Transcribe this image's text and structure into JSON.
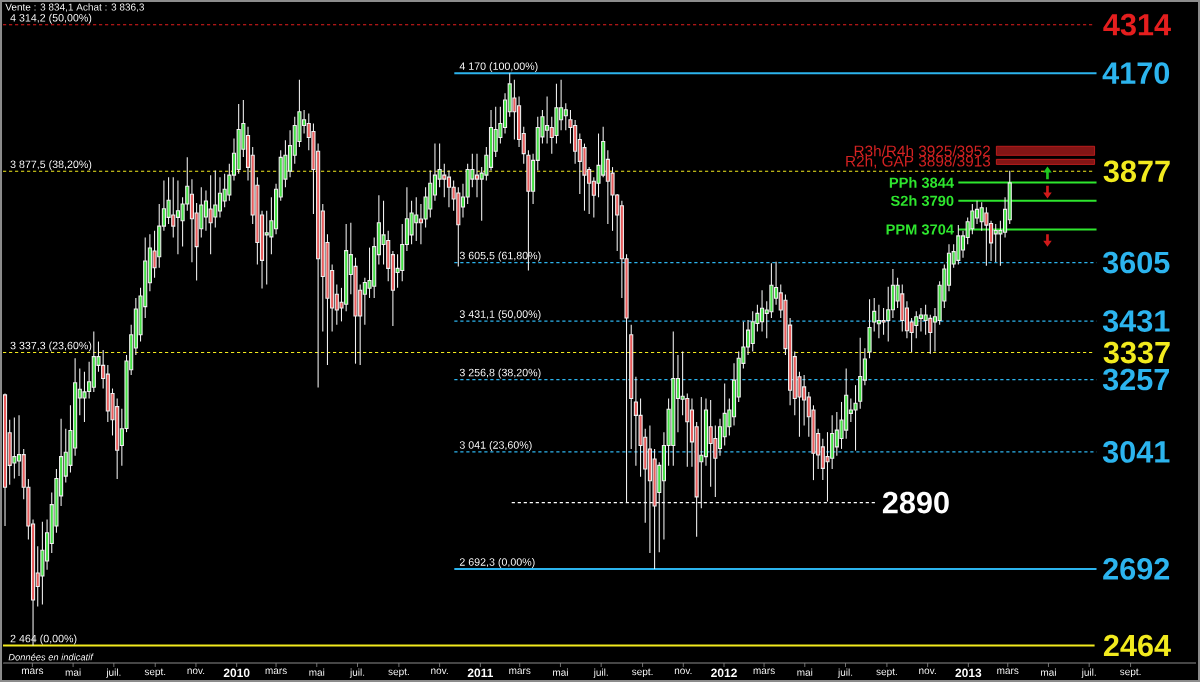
{
  "chart_data": {
    "type": "candlestick",
    "title": "Vente : 3 834,1 Achat : 3 836,3",
    "x": [
      "2009-01-19",
      "2009-01-26",
      "2009-02-02",
      "2009-02-09",
      "2009-02-16",
      "2009-02-23",
      "2009-03-02",
      "2009-03-09",
      "2009-03-16",
      "2009-03-23",
      "2009-03-30",
      "2009-04-06",
      "2009-04-13",
      "2009-04-20",
      "2009-04-27",
      "2009-05-04",
      "2009-05-11",
      "2009-05-18",
      "2009-05-25",
      "2009-06-01",
      "2009-06-08",
      "2009-06-15",
      "2009-06-22",
      "2009-06-29",
      "2009-07-06",
      "2009-07-13",
      "2009-07-20",
      "2009-07-27",
      "2009-08-03",
      "2009-08-10",
      "2009-08-17",
      "2009-08-24",
      "2009-08-31",
      "2009-09-07",
      "2009-09-14",
      "2009-09-21",
      "2009-09-28",
      "2009-10-05",
      "2009-10-12",
      "2009-10-19",
      "2009-10-26",
      "2009-11-02",
      "2009-11-09",
      "2009-11-16",
      "2009-11-23",
      "2009-11-30",
      "2009-12-07",
      "2009-12-14",
      "2009-12-21",
      "2009-12-28",
      "2010-01-04",
      "2010-01-11",
      "2010-01-18",
      "2010-01-25",
      "2010-02-01",
      "2010-02-08",
      "2010-02-15",
      "2010-02-22",
      "2010-03-01",
      "2010-03-08",
      "2010-03-15",
      "2010-03-22",
      "2010-03-29",
      "2010-04-05",
      "2010-04-12",
      "2010-04-19",
      "2010-04-26",
      "2010-05-03",
      "2010-05-10",
      "2010-05-17",
      "2010-05-24",
      "2010-05-31",
      "2010-06-07",
      "2010-06-14",
      "2010-06-21",
      "2010-06-28",
      "2010-07-05",
      "2010-07-12",
      "2010-07-19",
      "2010-07-26",
      "2010-08-02",
      "2010-08-09",
      "2010-08-16",
      "2010-08-23",
      "2010-08-30",
      "2010-09-06",
      "2010-09-13",
      "2010-09-20",
      "2010-09-27",
      "2010-10-04",
      "2010-10-11",
      "2010-10-18",
      "2010-10-25",
      "2010-11-01",
      "2010-11-08",
      "2010-11-15",
      "2010-11-22",
      "2010-11-29",
      "2010-12-06",
      "2010-12-13",
      "2010-12-20",
      "2010-12-27",
      "2011-01-03",
      "2011-01-10",
      "2011-01-17",
      "2011-01-24",
      "2011-01-31",
      "2011-02-07",
      "2011-02-14",
      "2011-02-21",
      "2011-02-28",
      "2011-03-07",
      "2011-03-14",
      "2011-03-21",
      "2011-03-28",
      "2011-04-04",
      "2011-04-11",
      "2011-04-18",
      "2011-04-25",
      "2011-05-02",
      "2011-05-09",
      "2011-05-16",
      "2011-05-23",
      "2011-05-30",
      "2011-06-06",
      "2011-06-13",
      "2011-06-20",
      "2011-06-27",
      "2011-07-04",
      "2011-07-11",
      "2011-07-18",
      "2011-07-25",
      "2011-08-01",
      "2011-08-08",
      "2011-08-15",
      "2011-08-22",
      "2011-08-29",
      "2011-09-05",
      "2011-09-12",
      "2011-09-19",
      "2011-09-26",
      "2011-10-03",
      "2011-10-10",
      "2011-10-17",
      "2011-10-24",
      "2011-10-31",
      "2011-11-07",
      "2011-11-14",
      "2011-11-21",
      "2011-11-28",
      "2011-12-05",
      "2011-12-12",
      "2011-12-19",
      "2011-12-26",
      "2012-01-02",
      "2012-01-09",
      "2012-01-16",
      "2012-01-23",
      "2012-01-30",
      "2012-02-06",
      "2012-02-13",
      "2012-02-20",
      "2012-02-27",
      "2012-03-05",
      "2012-03-12",
      "2012-03-19",
      "2012-03-26",
      "2012-04-02",
      "2012-04-09",
      "2012-04-16",
      "2012-04-23",
      "2012-04-30",
      "2012-05-07",
      "2012-05-14",
      "2012-05-21",
      "2012-05-28",
      "2012-06-04",
      "2012-06-11",
      "2012-06-18",
      "2012-06-25",
      "2012-07-02",
      "2012-07-09",
      "2012-07-16",
      "2012-07-23",
      "2012-07-30",
      "2012-08-06",
      "2012-08-13",
      "2012-08-20",
      "2012-08-27",
      "2012-09-03",
      "2012-09-10",
      "2012-09-17",
      "2012-09-24",
      "2012-10-01",
      "2012-10-08",
      "2012-10-15",
      "2012-10-22",
      "2012-10-29",
      "2012-11-05",
      "2012-11-12",
      "2012-11-19",
      "2012-11-26",
      "2012-12-03",
      "2012-12-10",
      "2012-12-17",
      "2012-12-24",
      "2012-12-31",
      "2013-01-07",
      "2013-01-14",
      "2013-01-21",
      "2013-01-28",
      "2013-02-04",
      "2013-02-11",
      "2013-02-18",
      "2013-02-25",
      "2013-03-04"
    ],
    "ohlc": [
      [
        3211,
        3215,
        2820,
        2936
      ],
      [
        3098,
        3137,
        2943,
        3001
      ],
      [
        3008,
        3144,
        2962,
        3027
      ],
      [
        3014,
        3150,
        2969,
        3033
      ],
      [
        3033,
        3050,
        2900,
        2936
      ],
      [
        2936,
        2960,
        2780,
        2820
      ],
      [
        2826,
        2840,
        2464,
        2600
      ],
      [
        2680,
        2760,
        2580,
        2640
      ],
      [
        2671,
        2833,
        2586,
        2748
      ],
      [
        2716,
        2840,
        2690,
        2800
      ],
      [
        2768,
        2920,
        2740,
        2884
      ],
      [
        2820,
        2990,
        2800,
        2962
      ],
      [
        2910,
        3140,
        2880,
        3027
      ],
      [
        2969,
        3110,
        2950,
        3040
      ],
      [
        3001,
        3180,
        2980,
        3105
      ],
      [
        3053,
        3320,
        3030,
        3247
      ],
      [
        3202,
        3290,
        3150,
        3228
      ],
      [
        3202,
        3280,
        3130,
        3220
      ],
      [
        3221,
        3310,
        3200,
        3250
      ],
      [
        3234,
        3400,
        3220,
        3325
      ],
      [
        3299,
        3370,
        3280,
        3325
      ],
      [
        3299,
        3345,
        3230,
        3260
      ],
      [
        3273,
        3300,
        3130,
        3163
      ],
      [
        3215,
        3230,
        3090,
        3137
      ],
      [
        3176,
        3200,
        2960,
        3046
      ],
      [
        3060,
        3170,
        3000,
        3110
      ],
      [
        3111,
        3330,
        3100,
        3312
      ],
      [
        3286,
        3420,
        3270,
        3390
      ],
      [
        3351,
        3500,
        3330,
        3467
      ],
      [
        3390,
        3530,
        3370,
        3506
      ],
      [
        3474,
        3680,
        3440,
        3610
      ],
      [
        3545,
        3690,
        3520,
        3649
      ],
      [
        3640,
        3700,
        3560,
        3590
      ],
      [
        3623,
        3780,
        3590,
        3714
      ],
      [
        3714,
        3850,
        3700,
        3766
      ],
      [
        3740,
        3860,
        3720,
        3791
      ],
      [
        3747,
        3860,
        3680,
        3714
      ],
      [
        3740,
        3850,
        3630,
        3760
      ],
      [
        3730,
        3800,
        3653,
        3780
      ],
      [
        3780,
        3919,
        3760,
        3833
      ],
      [
        3809,
        3854,
        3606,
        3736
      ],
      [
        3753,
        3783,
        3552,
        3653
      ],
      [
        3706,
        3830,
        3680,
        3777
      ],
      [
        3741,
        3820,
        3700,
        3789
      ],
      [
        3765,
        3866,
        3630,
        3724
      ],
      [
        3741,
        3880,
        3710,
        3777
      ],
      [
        3759,
        3860,
        3740,
        3812
      ],
      [
        3789,
        3870,
        3770,
        3824
      ],
      [
        3807,
        3900,
        3790,
        3866
      ],
      [
        3866,
        3975,
        3850,
        3931
      ],
      [
        3883,
        4078,
        3870,
        4002
      ],
      [
        3943,
        4090,
        3920,
        4020
      ],
      [
        3984,
        4010,
        3850,
        3889
      ],
      [
        3925,
        3950,
        3720,
        3747
      ],
      [
        3836,
        3860,
        3600,
        3665
      ],
      [
        3747,
        3760,
        3528,
        3612
      ],
      [
        3688,
        3760,
        3540,
        3694
      ],
      [
        3682,
        3800,
        3630,
        3730
      ],
      [
        3706,
        3840,
        3690,
        3824
      ],
      [
        3801,
        3940,
        3790,
        3919
      ],
      [
        3854,
        3970,
        3830,
        3925
      ],
      [
        3878,
        4000,
        3860,
        3954
      ],
      [
        3925,
        4040,
        3900,
        4014
      ],
      [
        3966,
        4150,
        3950,
        4055
      ],
      [
        4014,
        4060,
        3990,
        4031
      ],
      [
        4020,
        4050,
        3940,
        3978
      ],
      [
        3996,
        4020,
        3750,
        3883
      ],
      [
        3937,
        3960,
        3233,
        3617
      ],
      [
        3759,
        3780,
        3400,
        3564
      ],
      [
        3665,
        3690,
        3300,
        3499
      ],
      [
        3582,
        3600,
        3400,
        3470
      ],
      [
        3511,
        3540,
        3420,
        3464
      ],
      [
        3487,
        3530,
        3430,
        3470
      ],
      [
        3481,
        3720,
        3460,
        3641
      ],
      [
        3570,
        3724,
        3511,
        3629
      ],
      [
        3594,
        3620,
        3304,
        3446
      ],
      [
        3523,
        3540,
        3300,
        3446
      ],
      [
        3511,
        3560,
        3420,
        3546
      ],
      [
        3529,
        3650,
        3500,
        3552
      ],
      [
        3535,
        3680,
        3500,
        3653
      ],
      [
        3629,
        3806,
        3600,
        3724
      ],
      [
        3659,
        3790,
        3600,
        3688
      ],
      [
        3671,
        3700,
        3550,
        3588
      ],
      [
        3629,
        3640,
        3416,
        3523
      ],
      [
        3576,
        3630,
        3530,
        3588
      ],
      [
        3582,
        3720,
        3550,
        3659
      ],
      [
        3659,
        3830,
        3640,
        3736
      ],
      [
        3688,
        3790,
        3660,
        3753
      ],
      [
        3724,
        3800,
        3670,
        3747
      ],
      [
        3735,
        3780,
        3660,
        3724
      ],
      [
        3735,
        3830,
        3710,
        3801
      ],
      [
        3765,
        3880,
        3740,
        3842
      ],
      [
        3807,
        3960,
        3790,
        3866
      ],
      [
        3854,
        3960,
        3830,
        3883
      ],
      [
        3866,
        3900,
        3800,
        3854
      ],
      [
        3860,
        3880,
        3770,
        3830
      ],
      [
        3830,
        3850,
        3760,
        3795
      ],
      [
        3813,
        3830,
        3594,
        3718
      ],
      [
        3771,
        3840,
        3740,
        3801
      ],
      [
        3801,
        3900,
        3780,
        3883
      ],
      [
        3854,
        3930,
        3830,
        3883
      ],
      [
        3866,
        3930,
        3800,
        3854
      ],
      [
        3854,
        3890,
        3730,
        3872
      ],
      [
        3866,
        3950,
        3850,
        3925
      ],
      [
        3889,
        4060,
        3880,
        4008
      ],
      [
        3937,
        4070,
        3920,
        4002
      ],
      [
        3978,
        4070,
        3960,
        4020
      ],
      [
        4008,
        4110,
        3990,
        4090
      ],
      [
        4055,
        4170,
        4040,
        4138
      ],
      [
        4096,
        4150,
        3972,
        4055
      ],
      [
        4073,
        4100,
        3950,
        3972
      ],
      [
        3990,
        4010,
        3900,
        3930
      ],
      [
        3925,
        3940,
        3582,
        3818
      ],
      [
        3818,
        3930,
        3780,
        3910
      ],
      [
        3910,
        4040,
        3880,
        4008
      ],
      [
        3980,
        4060,
        3960,
        4040
      ],
      [
        4000,
        4100,
        3960,
        4014
      ],
      [
        4008,
        4040,
        3930,
        3978
      ],
      [
        3984,
        4138,
        3960,
        4067
      ],
      [
        4031,
        4150,
        4000,
        4067
      ],
      [
        4043,
        4080,
        4000,
        4061
      ],
      [
        4031,
        4060,
        3960,
        4008
      ],
      [
        4014,
        4030,
        3900,
        3937
      ],
      [
        3972,
        3990,
        3810,
        3907
      ],
      [
        3948,
        3960,
        3760,
        3866
      ],
      [
        3883,
        3890,
        3750,
        3842
      ],
      [
        3848,
        3860,
        3740,
        3806
      ],
      [
        3842,
        3990,
        3800,
        3895
      ],
      [
        3866,
        4010,
        3860,
        3966
      ],
      [
        3913,
        3940,
        3720,
        3848
      ],
      [
        3872,
        3890,
        3700,
        3807
      ],
      [
        3807,
        3810,
        3640,
        3747
      ],
      [
        3775,
        3790,
        3500,
        3617
      ],
      [
        3617,
        3630,
        2890,
        3440
      ],
      [
        3390,
        3420,
        3050,
        3200
      ],
      [
        3190,
        3265,
        3000,
        3150
      ],
      [
        3150,
        3200,
        2967,
        3060
      ],
      [
        3085,
        3110,
        2830,
        2990
      ],
      [
        3050,
        3120,
        2740,
        2955
      ],
      [
        3020,
        3050,
        2692,
        2880
      ],
      [
        2920,
        3010,
        2742,
        3001
      ],
      [
        2955,
        3100,
        2780,
        3060
      ],
      [
        3060,
        3200,
        3000,
        3168
      ],
      [
        3060,
        3400,
        3000,
        3260
      ],
      [
        3200,
        3330,
        3100,
        3260
      ],
      [
        3198,
        3340,
        3150,
        3207
      ],
      [
        3200,
        3215,
        2997,
        3131
      ],
      [
        3166,
        3200,
        2997,
        3071
      ],
      [
        3116,
        3130,
        2788,
        2907
      ],
      [
        3012,
        3205,
        2873,
        3031
      ],
      [
        3027,
        3200,
        3000,
        3166
      ],
      [
        3116,
        3196,
        2937,
        3066
      ],
      [
        3081,
        3120,
        2907,
        3022
      ],
      [
        3051,
        3140,
        3030,
        3116
      ],
      [
        3086,
        3245,
        3060,
        3156
      ],
      [
        3116,
        3200,
        3090,
        3166
      ],
      [
        3146,
        3305,
        3120,
        3255
      ],
      [
        3205,
        3340,
        3190,
        3320
      ],
      [
        3305,
        3429,
        3290,
        3354
      ],
      [
        3354,
        3434,
        3330,
        3404
      ],
      [
        3364,
        3460,
        3340,
        3429
      ],
      [
        3424,
        3480,
        3400,
        3454
      ],
      [
        3429,
        3523,
        3400,
        3469
      ],
      [
        3454,
        3490,
        3380,
        3464
      ],
      [
        3459,
        3603,
        3440,
        3538
      ],
      [
        3499,
        3608,
        3480,
        3531
      ],
      [
        3515,
        3540,
        3440,
        3464
      ],
      [
        3493,
        3510,
        3330,
        3349
      ],
      [
        3419,
        3440,
        3180,
        3225
      ],
      [
        3325,
        3340,
        3150,
        3200
      ],
      [
        3265,
        3280,
        3086,
        3205
      ],
      [
        3235,
        3270,
        3120,
        3196
      ],
      [
        3205,
        3220,
        3086,
        3146
      ],
      [
        3166,
        3180,
        2957,
        3037
      ],
      [
        3096,
        3110,
        2990,
        3032
      ],
      [
        3056,
        3080,
        2957,
        2992
      ],
      [
        3027,
        3100,
        2893,
        3012
      ],
      [
        3022,
        3150,
        2990,
        3096
      ],
      [
        3056,
        3160,
        3030,
        3106
      ],
      [
        3081,
        3190,
        3050,
        3136
      ],
      [
        3106,
        3290,
        3080,
        3210
      ],
      [
        3156,
        3200,
        3130,
        3166
      ],
      [
        3166,
        3240,
        3045,
        3186
      ],
      [
        3192,
        3381,
        3170,
        3266
      ],
      [
        3255,
        3350,
        3240,
        3318
      ],
      [
        3339,
        3496,
        3320,
        3412
      ],
      [
        3428,
        3500,
        3400,
        3460
      ],
      [
        3423,
        3480,
        3380,
        3433
      ],
      [
        3433,
        3470,
        3390,
        3428
      ],
      [
        3433,
        3533,
        3370,
        3465
      ],
      [
        3465,
        3586,
        3440,
        3538
      ],
      [
        3491,
        3560,
        3470,
        3538
      ],
      [
        3512,
        3540,
        3400,
        3433
      ],
      [
        3470,
        3490,
        3380,
        3402
      ],
      [
        3428,
        3440,
        3339,
        3397
      ],
      [
        3418,
        3460,
        3380,
        3444
      ],
      [
        3439,
        3470,
        3400,
        3449
      ],
      [
        3433,
        3480,
        3390,
        3449
      ],
      [
        3439,
        3450,
        3334,
        3397
      ],
      [
        3428,
        3470,
        3340,
        3444
      ],
      [
        3433,
        3550,
        3420,
        3538
      ],
      [
        3491,
        3600,
        3470,
        3586
      ],
      [
        3538,
        3660,
        3520,
        3633
      ],
      [
        3601,
        3660,
        3590,
        3638
      ],
      [
        3612,
        3717,
        3600,
        3685
      ],
      [
        3643,
        3700,
        3620,
        3685
      ],
      [
        3680,
        3740,
        3660,
        3727
      ],
      [
        3706,
        3780,
        3690,
        3759
      ],
      [
        3738,
        3790,
        3720,
        3764
      ],
      [
        3727,
        3785,
        3700,
        3769
      ],
      [
        3753,
        3770,
        3596,
        3717
      ],
      [
        3722,
        3730,
        3610,
        3664
      ],
      [
        3691,
        3720,
        3607,
        3701
      ],
      [
        3691,
        3730,
        3596,
        3701
      ],
      [
        3696,
        3800,
        3680,
        3764
      ],
      [
        3733,
        3879,
        3720,
        3843
      ]
    ],
    "xlim": [
      "2009-01-16",
      "2013-12-08"
    ],
    "ylim": [
      2412,
      4382
    ],
    "xticks": [
      {
        "value": "2009-03-01",
        "label": "mars"
      },
      {
        "value": "2009-05-01",
        "label": "mai"
      },
      {
        "value": "2009-07-01",
        "label": "juil."
      },
      {
        "value": "2009-09-01",
        "label": "sept."
      },
      {
        "value": "2009-11-01",
        "label": "nov."
      },
      {
        "value": "2010-01-01",
        "label": "2010"
      },
      {
        "value": "2010-03-01",
        "label": "mars"
      },
      {
        "value": "2010-05-01",
        "label": "mai"
      },
      {
        "value": "2010-07-01",
        "label": "juil."
      },
      {
        "value": "2010-09-01",
        "label": "sept."
      },
      {
        "value": "2010-11-01",
        "label": "nov."
      },
      {
        "value": "2011-01-01",
        "label": "2011"
      },
      {
        "value": "2011-03-01",
        "label": "mars"
      },
      {
        "value": "2011-05-01",
        "label": "mai"
      },
      {
        "value": "2011-07-01",
        "label": "juil."
      },
      {
        "value": "2011-09-01",
        "label": "sept."
      },
      {
        "value": "2011-11-01",
        "label": "nov."
      },
      {
        "value": "2012-01-01",
        "label": "2012"
      },
      {
        "value": "2012-03-01",
        "label": "mars"
      },
      {
        "value": "2012-05-01",
        "label": "mai"
      },
      {
        "value": "2012-07-01",
        "label": "juil."
      },
      {
        "value": "2012-09-01",
        "label": "sept."
      },
      {
        "value": "2012-11-01",
        "label": "nov."
      },
      {
        "value": "2013-01-01",
        "label": "2013"
      },
      {
        "value": "2013-03-01",
        "label": "mars"
      },
      {
        "value": "2013-05-01",
        "label": "mai"
      },
      {
        "value": "2013-07-01",
        "label": "juil."
      },
      {
        "value": "2013-09-01",
        "label": "sept."
      }
    ],
    "tick_labels": "x",
    "ref_lines": [
      {
        "axis": "y",
        "value": 4314.2,
        "label": "4314",
        "color": "#e41e1e",
        "line_style": "dotted"
      },
      {
        "axis": "y",
        "value": 3877.5,
        "label": "3877",
        "color": "#f2ea1e",
        "line_style": "dotted"
      },
      {
        "axis": "y",
        "value": 3337.3,
        "label": "3337",
        "color": "#f2ea1e",
        "line_style": "dotted"
      },
      {
        "axis": "y",
        "value": 2464,
        "label": "2464",
        "color": "#f2ea1e",
        "line_style": "solid"
      }
    ],
    "bands": [
      {
        "axis": "y",
        "from": 3925,
        "to": 3952,
        "label": "R3h/R4h 3925/3952",
        "color": "#d42222"
      },
      {
        "axis": "y",
        "from": 3898,
        "to": 3913,
        "label": "R2h, GAP 3898/3913",
        "color": "#d42222"
      }
    ],
    "series": [
      {
        "type": "line",
        "name": "4170",
        "color": "#2cb4ee",
        "line_style": "solid",
        "x": [
          "2010-11-23",
          "2013-07-12"
        ],
        "values": [
          4170,
          4170
        ]
      },
      {
        "type": "line",
        "name": "3605",
        "color": "#2cb4ee",
        "line_style": "dotted",
        "x": [
          "2010-11-23",
          "2013-07-12"
        ],
        "values": [
          3605.5,
          3605.5
        ]
      },
      {
        "type": "line",
        "name": "3431",
        "color": "#2cb4ee",
        "line_style": "dotted",
        "x": [
          "2010-11-23",
          "2013-07-12"
        ],
        "values": [
          3431.1,
          3431.1
        ]
      },
      {
        "type": "line",
        "name": "3257",
        "color": "#2cb4ee",
        "line_style": "dotted",
        "x": [
          "2010-11-23",
          "2013-07-12"
        ],
        "values": [
          3256.8,
          3256.8
        ]
      },
      {
        "type": "line",
        "name": "3041",
        "color": "#2cb4ee",
        "line_style": "dotted",
        "x": [
          "2010-11-23",
          "2013-07-12"
        ],
        "values": [
          3041,
          3041
        ]
      },
      {
        "type": "line",
        "name": "2692",
        "color": "#2cb4ee",
        "line_style": "solid",
        "x": [
          "2010-11-23",
          "2013-07-12"
        ],
        "values": [
          2692.3,
          2692.3
        ]
      },
      {
        "type": "line",
        "name": "2890",
        "color": "#ffffff",
        "line_style": "dotted",
        "x": [
          "2011-02-17",
          "2012-08-16"
        ],
        "values": [
          2890,
          2890
        ]
      },
      {
        "type": "line",
        "name": "PPh 3844",
        "color": "#2ee62e",
        "line_style": "solid",
        "x": [
          "2012-12-17",
          "2013-07-12"
        ],
        "values": [
          3844,
          3844
        ]
      },
      {
        "type": "line",
        "name": "S2h 3790",
        "color": "#2ee62e",
        "line_style": "solid",
        "x": [
          "2012-12-17",
          "2013-07-12"
        ],
        "values": [
          3790,
          3790
        ]
      },
      {
        "type": "line",
        "name": "PPM 3704",
        "color": "#2ee62e",
        "line_style": "solid",
        "x": [
          "2012-12-17",
          "2013-07-12"
        ],
        "values": [
          3704,
          3704
        ]
      }
    ],
    "annotations": [
      {
        "text": "4 314,2 (50,00%)",
        "x": "2009-01-19",
        "y": 4314.2
      },
      {
        "text": "3 877,5 (38,20%)",
        "x": "2009-01-19",
        "y": 3877.5
      },
      {
        "text": "3 337,3 (23,60%)",
        "x": "2009-01-19",
        "y": 3337.3
      },
      {
        "text": "2 464 (0,00%)",
        "x": "2009-01-19",
        "y": 2464
      },
      {
        "text": "4 170 (100,00%)",
        "x": "2010-11-23",
        "y": 4170
      },
      {
        "text": "3 605,5 (61,80%)",
        "x": "2010-11-23",
        "y": 3605.5
      },
      {
        "text": "3 431,1 (50,00%)",
        "x": "2010-11-23",
        "y": 3431.1
      },
      {
        "text": "3 256,8 (38,20%)",
        "x": "2010-11-23",
        "y": 3256.8
      },
      {
        "text": "3 041 (23,60%)",
        "x": "2010-11-23",
        "y": 3041
      },
      {
        "text": "2 692,3 (0,00%)",
        "x": "2010-11-23",
        "y": 2692.3
      },
      "Données en indicatif"
    ]
  }
}
